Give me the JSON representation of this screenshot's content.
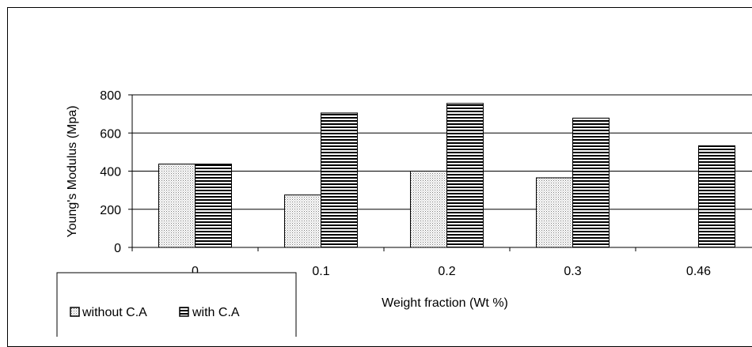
{
  "chart_data": {
    "type": "bar",
    "categories": [
      "0",
      "0.1",
      "0.2",
      "0.3",
      "0.46"
    ],
    "series": [
      {
        "name": "without C.A",
        "values": [
          437,
          275,
          400,
          365,
          0
        ],
        "pattern": "dots"
      },
      {
        "name": "with C.A",
        "values": [
          437,
          705,
          755,
          678,
          533
        ],
        "pattern": "hlines"
      }
    ],
    "title": "",
    "xlabel": "Weight fraction (Wt %)",
    "ylabel": "Young's Modulus (Mpa)",
    "ylim": [
      0,
      800
    ],
    "yticks": [
      0,
      200,
      400,
      600,
      800
    ],
    "grid": true,
    "legend_position": "bottom-left",
    "colors": {
      "bar_fill": "#ffffff",
      "pattern": "#000000",
      "dots": "#7a7a7a"
    }
  }
}
